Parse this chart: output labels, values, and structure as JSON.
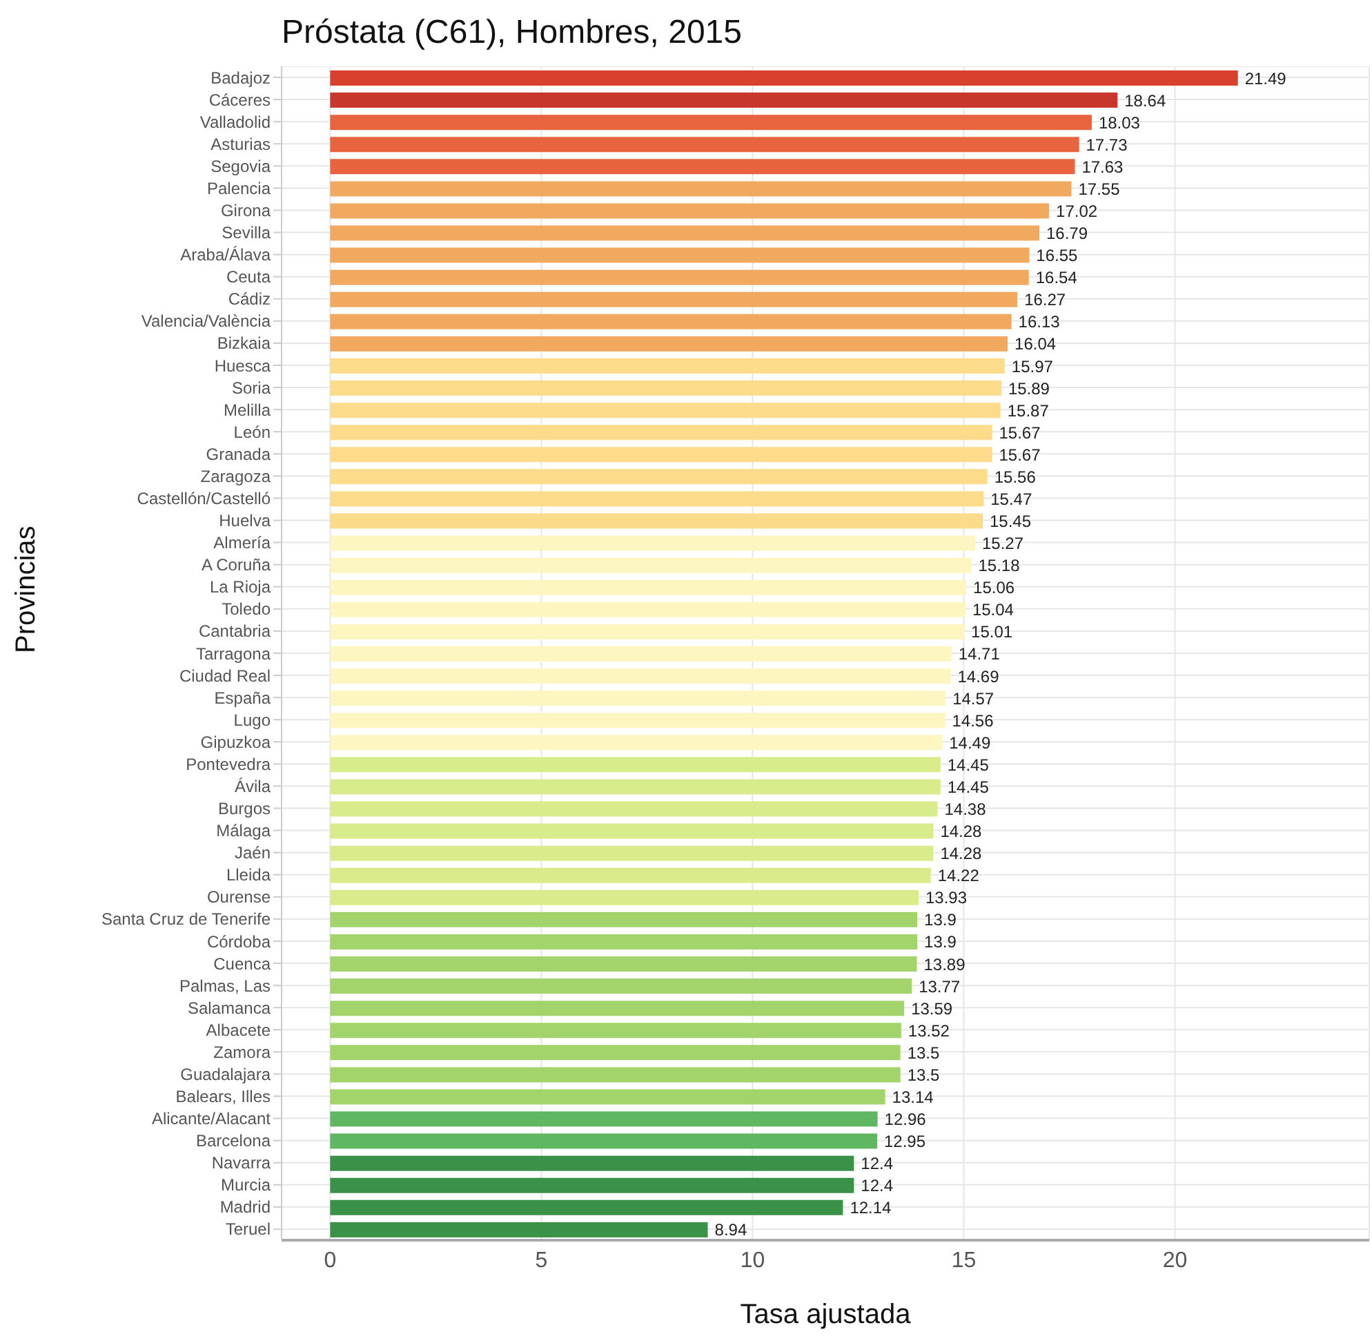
{
  "chart_data": {
    "type": "bar",
    "orientation": "horizontal",
    "title": "Próstata (C61), Hombres, 2015",
    "xlabel": "Tasa ajustada",
    "ylabel": "Provincias",
    "categories": [
      "Badajoz",
      "Cáceres",
      "Valladolid",
      "Asturias",
      "Segovia",
      "Palencia",
      "Girona",
      "Sevilla",
      "Araba/Álava",
      "Ceuta",
      "Cádiz",
      "Valencia/València",
      "Bizkaia",
      "Huesca",
      "Soria",
      "Melilla",
      "León",
      "Granada",
      "Zaragoza",
      "Castellón/Castelló",
      "Huelva",
      "Almería",
      "A Coruña",
      "La Rioja",
      "Toledo",
      "Cantabria",
      "Tarragona",
      "Ciudad Real",
      "España",
      "Lugo",
      "Gipuzkoa",
      "Pontevedra",
      "Ávila",
      "Burgos",
      "Málaga",
      "Jaén",
      "Lleida",
      "Ourense",
      "Santa Cruz de Tenerife",
      "Córdoba",
      "Cuenca",
      "Palmas, Las",
      "Salamanca",
      "Albacete",
      "Zamora",
      "Guadalajara",
      "Balears, Illes",
      "Alicante/Alacant",
      "Barcelona",
      "Navarra",
      "Murcia",
      "Madrid",
      "Teruel"
    ],
    "values": [
      21.49,
      18.64,
      18.03,
      17.73,
      17.63,
      17.55,
      17.02,
      16.79,
      16.55,
      16.54,
      16.27,
      16.13,
      16.04,
      15.97,
      15.89,
      15.87,
      15.67,
      15.67,
      15.56,
      15.47,
      15.45,
      15.27,
      15.18,
      15.06,
      15.04,
      15.01,
      14.71,
      14.69,
      14.57,
      14.56,
      14.49,
      14.45,
      14.45,
      14.38,
      14.28,
      14.28,
      14.22,
      13.93,
      13.9,
      13.9,
      13.89,
      13.77,
      13.59,
      13.52,
      13.5,
      13.5,
      13.14,
      12.96,
      12.95,
      12.4,
      12.4,
      12.14,
      8.94
    ],
    "colors": [
      "#d7412e",
      "#c8372b",
      "#e8643f",
      "#e8643f",
      "#e8643f",
      "#f1a960",
      "#f1a960",
      "#f1a960",
      "#f1a960",
      "#f1a960",
      "#f1a960",
      "#f1a960",
      "#f1a960",
      "#fcdc8a",
      "#fcdc8a",
      "#fcdc8a",
      "#fcdc8a",
      "#fcdc8a",
      "#fcdc8a",
      "#fcdc8a",
      "#fcdc8a",
      "#fdf6c0",
      "#fdf6c0",
      "#fdf6c0",
      "#fdf6c0",
      "#fdf6c0",
      "#fdf6c0",
      "#fdf6c0",
      "#fdf6c0",
      "#fdf6c0",
      "#fdf6c0",
      "#d9ec8c",
      "#d9ec8c",
      "#d9ec8c",
      "#d9ec8c",
      "#d9ec8c",
      "#d9ec8c",
      "#d9ec8c",
      "#a3d46b",
      "#a3d46b",
      "#a3d46b",
      "#a3d46b",
      "#a3d46b",
      "#a3d46b",
      "#a3d46b",
      "#a3d46b",
      "#a3d46b",
      "#5fb762",
      "#5fb762",
      "#3a9148",
      "#3a9148",
      "#3a9148",
      "#3a9148"
    ],
    "xlim": [
      -1.15,
      24.6
    ],
    "xticks": [
      0,
      5,
      10,
      15,
      20
    ],
    "grid": true,
    "data_labels": true,
    "legend": false
  }
}
